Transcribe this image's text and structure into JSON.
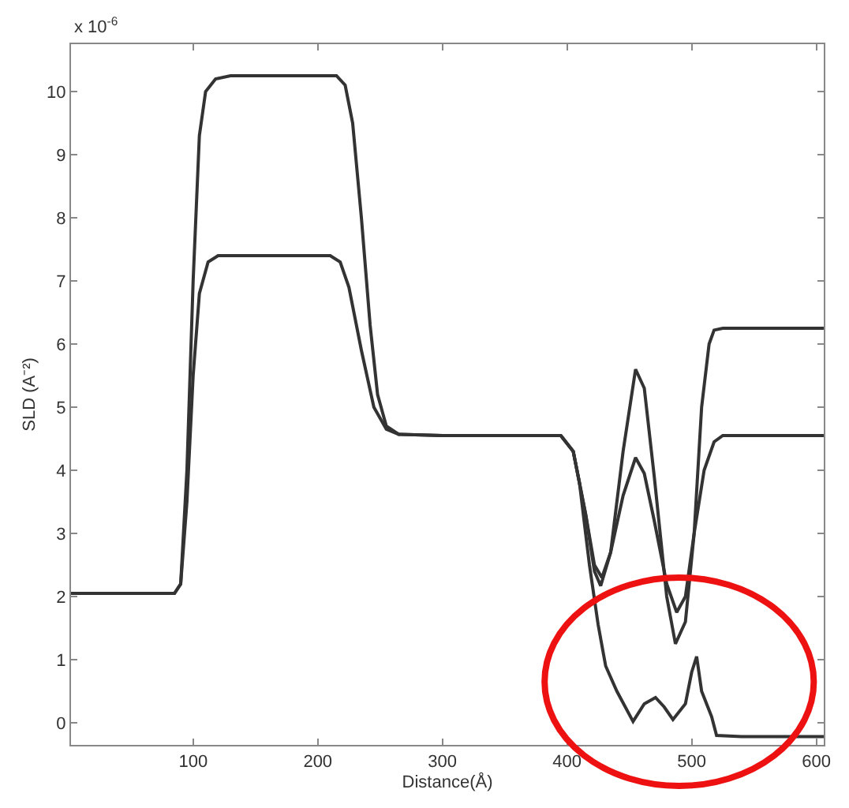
{
  "chart_data": {
    "type": "line",
    "xlabel": "Distance(Å)",
    "ylabel": "SLD (A⁻²)",
    "annotations": [
      "x 10$^{-6}$"
    ],
    "xlim": [
      2,
      606
    ],
    "xticks": [
      100,
      200,
      300,
      400,
      500,
      600
    ],
    "ylim": [
      -0.35,
      10.75
    ],
    "yticks": [
      0,
      1,
      2,
      3,
      4,
      5,
      6,
      7,
      8,
      9,
      10
    ],
    "marker": "none",
    "line_style": "solid",
    "series": [
      {
        "color": "#333333",
        "x": [
          2,
          85,
          90,
          95,
          100,
          105,
          110,
          118,
          130,
          215,
          222,
          228,
          235,
          242,
          248,
          255,
          265,
          300,
          395,
          405,
          415,
          422,
          427,
          435,
          445,
          455,
          462,
          470,
          480,
          487,
          495,
          502,
          508,
          514,
          518,
          525,
          606
        ],
        "values": [
          2.05,
          2.05,
          2.2,
          4.0,
          7.0,
          9.3,
          10.0,
          10.2,
          10.25,
          10.25,
          10.1,
          9.5,
          8.0,
          6.3,
          5.2,
          4.7,
          4.57,
          4.55,
          4.55,
          4.3,
          3.3,
          2.4,
          2.17,
          2.7,
          4.3,
          5.6,
          5.3,
          3.9,
          2.0,
          1.25,
          1.6,
          3.0,
          5.0,
          6.0,
          6.22,
          6.25,
          6.25
        ]
      },
      {
        "color": "#333333",
        "x": [
          2,
          85,
          90,
          95,
          100,
          105,
          112,
          120,
          210,
          218,
          225,
          235,
          245,
          255,
          265,
          300,
          395,
          405,
          415,
          422,
          428,
          435,
          445,
          455,
          462,
          470,
          480,
          488,
          495,
          502,
          510,
          518,
          525,
          606
        ],
        "values": [
          2.05,
          2.05,
          2.2,
          3.5,
          5.5,
          6.8,
          7.3,
          7.4,
          7.4,
          7.3,
          6.9,
          5.9,
          5.0,
          4.65,
          4.57,
          4.55,
          4.55,
          4.3,
          3.3,
          2.5,
          2.3,
          2.7,
          3.6,
          4.2,
          3.95,
          3.2,
          2.2,
          1.75,
          2.0,
          3.0,
          4.0,
          4.45,
          4.55,
          4.55
        ]
      },
      {
        "color": "#333333",
        "x": [
          395,
          405,
          410,
          418,
          425,
          431,
          440,
          453,
          462,
          471,
          478,
          485,
          495,
          500,
          504,
          508,
          512,
          516,
          520,
          540,
          606
        ],
        "values": [
          4.55,
          4.3,
          3.8,
          2.5,
          1.55,
          0.9,
          0.5,
          0.02,
          0.3,
          0.4,
          0.25,
          0.05,
          0.3,
          0.8,
          1.05,
          0.5,
          0.3,
          0.1,
          -0.2,
          -0.22,
          -0.22
        ]
      }
    ]
  }
}
